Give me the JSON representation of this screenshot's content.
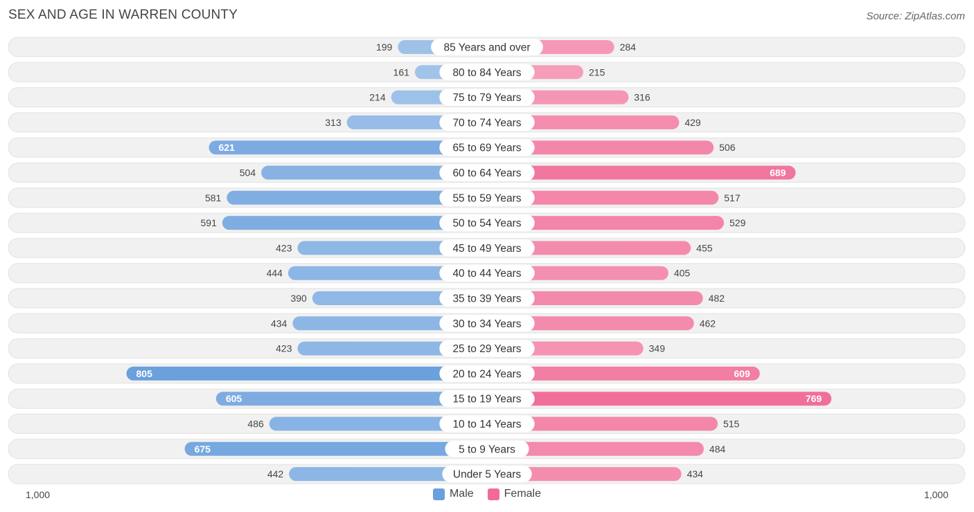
{
  "title": "SEX AND AGE IN WARREN COUNTY",
  "source": "Source: ZipAtlas.com",
  "axis": {
    "left_label": "1,000",
    "right_label": "1,000"
  },
  "legend": {
    "male_label": "Male",
    "female_label": "Female"
  },
  "colors": {
    "male": "#6aa0dc",
    "male_light": "#a9c8ec",
    "female": "#f06b96",
    "female_light": "#f7a8c1",
    "row_bg": "#f1f1f1"
  },
  "chart_data": {
    "type": "bar",
    "orientation": "horizontal-diverging",
    "xlim": [
      -1000,
      1000
    ],
    "categories": [
      "85 Years and over",
      "80 to 84 Years",
      "75 to 79 Years",
      "70 to 74 Years",
      "65 to 69 Years",
      "60 to 64 Years",
      "55 to 59 Years",
      "50 to 54 Years",
      "45 to 49 Years",
      "40 to 44 Years",
      "35 to 39 Years",
      "30 to 34 Years",
      "25 to 29 Years",
      "20 to 24 Years",
      "15 to 19 Years",
      "10 to 14 Years",
      "5 to 9 Years",
      "Under 5 Years"
    ],
    "series": [
      {
        "name": "Male",
        "values": [
          199,
          161,
          214,
          313,
          621,
          504,
          581,
          591,
          423,
          444,
          390,
          434,
          423,
          805,
          605,
          486,
          675,
          442
        ]
      },
      {
        "name": "Female",
        "values": [
          284,
          215,
          316,
          429,
          506,
          689,
          517,
          529,
          455,
          405,
          482,
          462,
          349,
          609,
          769,
          515,
          484,
          434
        ]
      }
    ],
    "legend_position": "bottom-center"
  }
}
